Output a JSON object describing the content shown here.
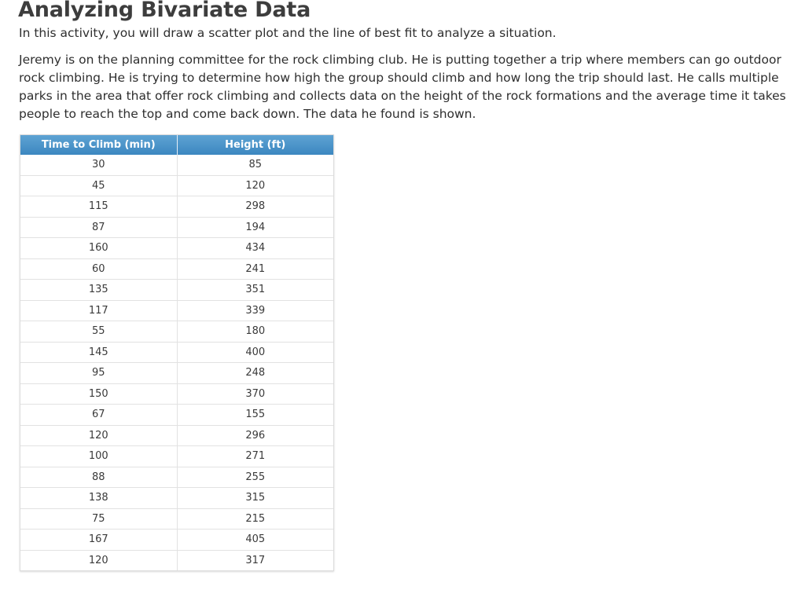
{
  "title": "Analyzing Bivariate Data",
  "intro": "In this activity, you will draw a scatter plot and the line of best fit to analyze a situation.",
  "scenario": "Jeremy is on the planning committee for the rock climbing club. He is putting together a trip where members can go outdoor rock climbing. He is trying to determine how high the group should climb and how long the trip should last. He calls multiple parks in the area that offer rock climbing and collects data on the height of the rock formations and the average time it takes people to reach the top and come back down. The data he found is shown.",
  "table": {
    "columns": [
      "Time to Climb (min)",
      "Height (ft)"
    ],
    "rows": [
      [
        "30",
        "85"
      ],
      [
        "45",
        "120"
      ],
      [
        "115",
        "298"
      ],
      [
        "87",
        "194"
      ],
      [
        "160",
        "434"
      ],
      [
        "60",
        "241"
      ],
      [
        "135",
        "351"
      ],
      [
        "117",
        "339"
      ],
      [
        "55",
        "180"
      ],
      [
        "145",
        "400"
      ],
      [
        "95",
        "248"
      ],
      [
        "150",
        "370"
      ],
      [
        "67",
        "155"
      ],
      [
        "120",
        "296"
      ],
      [
        "100",
        "271"
      ],
      [
        "88",
        "255"
      ],
      [
        "138",
        "315"
      ],
      [
        "75",
        "215"
      ],
      [
        "167",
        "405"
      ],
      [
        "120",
        "317"
      ]
    ]
  },
  "colors": {
    "header_bg": "#4a93c8",
    "header_text": "#ffffff",
    "title": "#3d3d3d",
    "grid": "#e2e2e2"
  }
}
